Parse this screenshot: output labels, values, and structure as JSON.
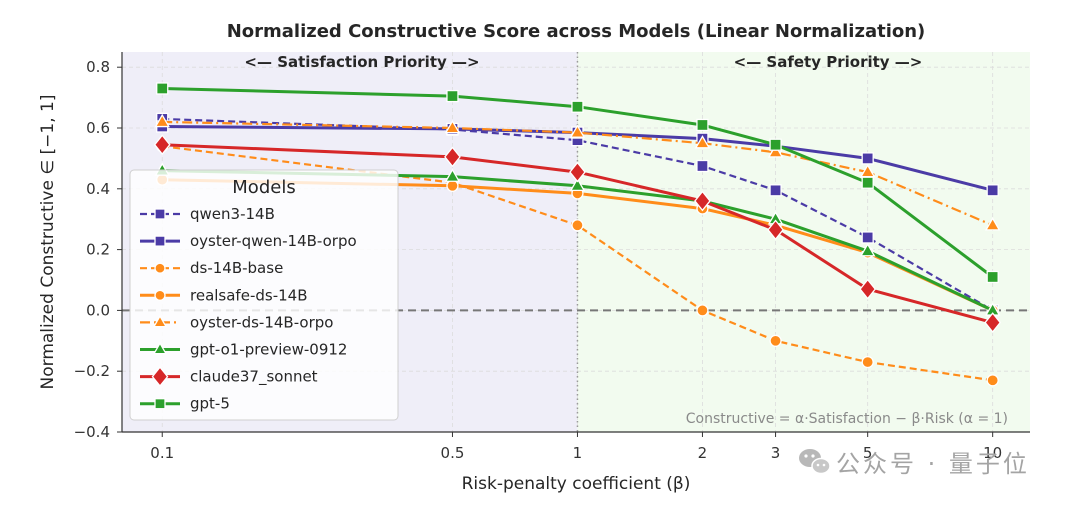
{
  "chart_data": {
    "type": "line",
    "title": "Normalized Constructive Score across Models (Linear Normalization)",
    "xlabel": "Risk-penalty coefficient (β)",
    "ylabel": "Normalized Constructive ∈ [−1, 1]",
    "x_scale": "log",
    "x": [
      0.1,
      0.5,
      1,
      2,
      3,
      5,
      10
    ],
    "x_tick_labels": [
      "0.1",
      "0.5",
      "1",
      "2",
      "3",
      "5",
      "10"
    ],
    "y_ticks": [
      0.8,
      0.6,
      0.4,
      0.2,
      0.0,
      -0.2,
      -0.4
    ],
    "y_tick_labels": [
      "0.8",
      "0.6",
      "0.4",
      "0.2",
      "0.0",
      "−0.2",
      "−0.4"
    ],
    "xlim": [
      0.08,
      12.3
    ],
    "ylim": [
      -0.4,
      0.85
    ],
    "grid": true,
    "legend": {
      "title": "Models",
      "placement": "center-left"
    },
    "regions": [
      {
        "label": "<— Satisfaction Priority —>",
        "x_range": [
          0.08,
          1
        ],
        "color": "#efeef8"
      },
      {
        "label": "<— Safety Priority —>",
        "x_range": [
          1,
          12.3
        ],
        "color": "#f2fbef"
      }
    ],
    "reference_lines": [
      {
        "axis": "y",
        "value": 0,
        "style": "dashed",
        "color": "#777777"
      },
      {
        "axis": "x",
        "value": 1,
        "style": "dotted",
        "color": "#9a9a9a"
      }
    ],
    "annotations": [
      {
        "text": "Constructive = α·Satisfaction − β·Risk (α = 1)",
        "placement": "bottom-right"
      }
    ],
    "series": [
      {
        "name": "qwen3-14B",
        "color": "#4b3ba6",
        "line_style": "dashed",
        "marker": "square",
        "values": [
          0.63,
          0.595,
          0.56,
          0.475,
          0.395,
          0.24,
          0.0
        ]
      },
      {
        "name": "oyster-qwen-14B-orpo",
        "color": "#4b3ba6",
        "line_style": "solid",
        "marker": "square",
        "values": [
          0.605,
          0.597,
          0.585,
          0.565,
          0.54,
          0.5,
          0.395
        ]
      },
      {
        "name": "ds-14B-base",
        "color": "#ff8c1a",
        "line_style": "dashed",
        "marker": "circle",
        "values": [
          0.54,
          0.42,
          0.28,
          0.0,
          -0.1,
          -0.17,
          -0.23
        ]
      },
      {
        "name": "realsafe-ds-14B",
        "color": "#ff8c1a",
        "line_style": "solid",
        "marker": "circle",
        "values": [
          0.43,
          0.41,
          0.385,
          0.335,
          0.28,
          0.19,
          0.0
        ]
      },
      {
        "name": "oyster-ds-14B-orpo",
        "color": "#ff8c1a",
        "line_style": "dashdot",
        "marker": "triangle",
        "values": [
          0.62,
          0.6,
          0.585,
          0.55,
          0.52,
          0.455,
          0.28
        ]
      },
      {
        "name": "gpt-o1-preview-0912",
        "color": "#2ca02c",
        "line_style": "solid",
        "marker": "triangle",
        "values": [
          0.46,
          0.44,
          0.41,
          0.36,
          0.3,
          0.195,
          0.0
        ]
      },
      {
        "name": "claude37_sonnet",
        "color": "#d62728",
        "line_style": "solid",
        "marker": "diamond",
        "values": [
          0.545,
          0.505,
          0.455,
          0.36,
          0.265,
          0.07,
          -0.04
        ]
      },
      {
        "name": "gpt-5",
        "color": "#2ca02c",
        "line_style": "solid",
        "marker": "square",
        "values": [
          0.73,
          0.705,
          0.67,
          0.61,
          0.545,
          0.42,
          0.11
        ]
      }
    ]
  },
  "watermark": {
    "text": "公众号 · 量子位",
    "icon": "wechat-icon"
  }
}
